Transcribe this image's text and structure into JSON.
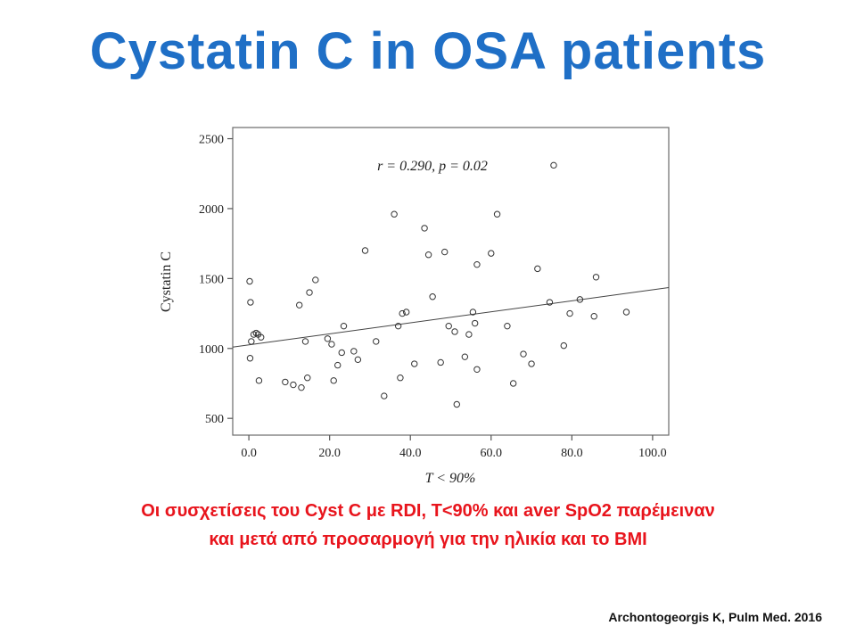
{
  "slide": {
    "title": "Cystatin C in OSA patients",
    "caption_line1": "Οι συσχετίσεις του Cyst C με RDI,  T<90% και aver SpO2 παρέμειναν",
    "caption_line2": "και μετά από προσαρμογή για την ηλικία και το BMI",
    "citation": "Archontogeorgis K,  Pulm Med. 2016"
  },
  "colors": {
    "title": "#1f6fc6",
    "caption": "#e8141c",
    "axis": "#555555",
    "marker": "#333333"
  },
  "chart_data": {
    "type": "scatter",
    "title": "",
    "annotation": "r = 0.290, p = 0.02",
    "xlabel": "T < 90%",
    "ylabel": "Cystatin C",
    "xlim": [
      -4,
      104
    ],
    "ylim": [
      380,
      2580
    ],
    "xticks": [
      0,
      20,
      40,
      60,
      80,
      100
    ],
    "xtick_labels": [
      "0.0",
      "20.0",
      "40.0",
      "60.0",
      "80.0",
      "100.0"
    ],
    "yticks": [
      500,
      1000,
      1500,
      2000,
      2500
    ],
    "ytick_labels": [
      "500",
      "1000",
      "1500",
      "2000",
      "2500"
    ],
    "grid": false,
    "legend": "none",
    "trendline": {
      "x": [
        -4,
        104
      ],
      "y": [
        1010,
        1435
      ]
    },
    "points": [
      [
        0.2,
        1480
      ],
      [
        0.4,
        1330
      ],
      [
        0.6,
        1050
      ],
      [
        0.3,
        930
      ],
      [
        1.2,
        1100
      ],
      [
        1.8,
        1110
      ],
      [
        2.3,
        1100
      ],
      [
        3.0,
        1080
      ],
      [
        2.5,
        770
      ],
      [
        9,
        760
      ],
      [
        11,
        740
      ],
      [
        12.5,
        1310
      ],
      [
        13,
        720
      ],
      [
        14,
        1050
      ],
      [
        14.5,
        790
      ],
      [
        15,
        1400
      ],
      [
        16.5,
        1490
      ],
      [
        19.5,
        1070
      ],
      [
        20.5,
        1030
      ],
      [
        21,
        770
      ],
      [
        22,
        880
      ],
      [
        23,
        970
      ],
      [
        23.5,
        1160
      ],
      [
        26,
        980
      ],
      [
        27,
        920
      ],
      [
        28.8,
        1700
      ],
      [
        31.5,
        1050
      ],
      [
        33.5,
        660
      ],
      [
        36,
        1960
      ],
      [
        37,
        1160
      ],
      [
        37.5,
        790
      ],
      [
        38,
        1250
      ],
      [
        39,
        1260
      ],
      [
        41,
        890
      ],
      [
        43.5,
        1860
      ],
      [
        44.5,
        1670
      ],
      [
        45.5,
        1370
      ],
      [
        47.5,
        900
      ],
      [
        48.5,
        1690
      ],
      [
        49.5,
        1160
      ],
      [
        51,
        1120
      ],
      [
        51.5,
        600
      ],
      [
        53.5,
        940
      ],
      [
        54.5,
        1100
      ],
      [
        55.5,
        1260
      ],
      [
        56,
        1180
      ],
      [
        56.5,
        850
      ],
      [
        56.5,
        1600
      ],
      [
        60,
        1680
      ],
      [
        61.5,
        1960
      ],
      [
        64,
        1160
      ],
      [
        65.5,
        750
      ],
      [
        68,
        960
      ],
      [
        70,
        890
      ],
      [
        71.5,
        1570
      ],
      [
        74.5,
        1330
      ],
      [
        75.5,
        2310
      ],
      [
        78,
        1020
      ],
      [
        79.5,
        1250
      ],
      [
        82,
        1350
      ],
      [
        85.5,
        1230
      ],
      [
        86,
        1510
      ],
      [
        93.5,
        1260
      ]
    ]
  }
}
